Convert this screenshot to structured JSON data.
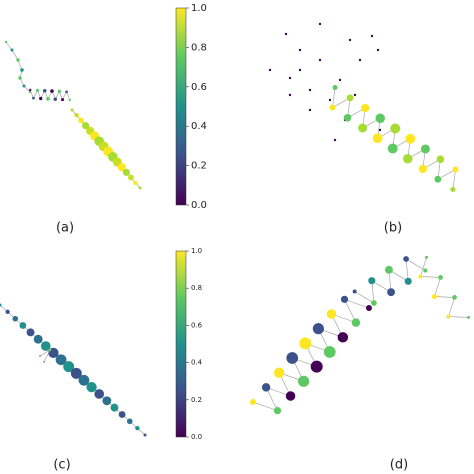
{
  "panels": [
    {
      "label": "(a)"
    },
    {
      "label": "(b)"
    },
    {
      "label": "(c)"
    },
    {
      "label": "(d)"
    }
  ],
  "colorbars": [
    {
      "colormap": "viridis",
      "ylim": [
        0,
        1
      ],
      "yticks": [
        {
          "value": 0,
          "label": "0.0"
        },
        {
          "value": 0.2,
          "label": "0.2"
        },
        {
          "value": 0.4,
          "label": "0.4"
        },
        {
          "value": 0.6,
          "label": "0.6"
        },
        {
          "value": 0.8,
          "label": "0.8"
        },
        {
          "value": 1,
          "label": "1.0"
        }
      ]
    },
    {
      "colormap": "viridis",
      "ylim": [
        0,
        1
      ],
      "yticks": [
        {
          "value": 0,
          "label": "0.0"
        },
        {
          "value": 0.2,
          "label": "0.2"
        },
        {
          "value": 0.4,
          "label": "0.4"
        },
        {
          "value": 0.6,
          "label": "0.6"
        },
        {
          "value": 0.8,
          "label": "0.8"
        },
        {
          "value": 1,
          "label": "1.0"
        }
      ]
    }
  ]
}
